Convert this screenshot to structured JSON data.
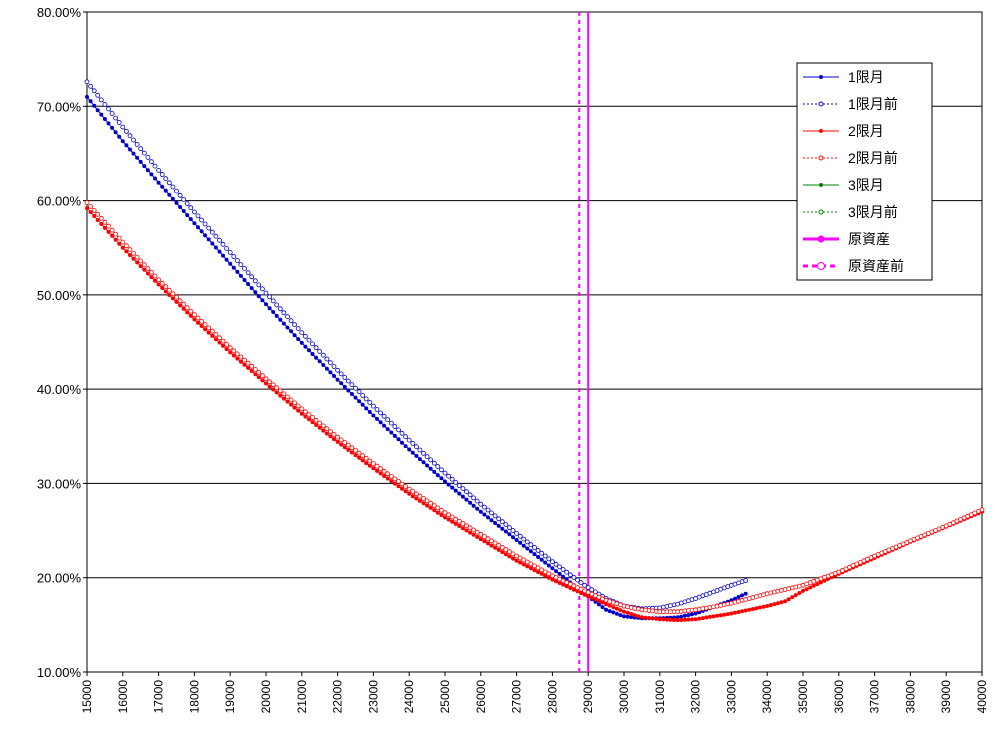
{
  "chart_data": {
    "type": "line",
    "title": "",
    "xlabel": "",
    "ylabel": "",
    "xlim": [
      15000,
      40000
    ],
    "ylim": [
      10,
      80
    ],
    "y_ticks": [
      "10.00%",
      "20.00%",
      "30.00%",
      "40.00%",
      "50.00%",
      "60.00%",
      "70.00%",
      "80.00%"
    ],
    "x_ticks": [
      "15000",
      "16000",
      "17000",
      "18000",
      "19000",
      "20000",
      "21000",
      "22000",
      "23000",
      "24000",
      "25000",
      "26000",
      "27000",
      "28000",
      "29000",
      "30000",
      "31000",
      "32000",
      "33000",
      "34000",
      "35000",
      "36000",
      "37000",
      "38000",
      "39000",
      "40000"
    ],
    "grid": "horizontal",
    "legend_position": "top-right",
    "series": [
      {
        "name": "1限月",
        "color": "#0000cc",
        "style": "solid-filled",
        "points": [
          [
            15000,
            71.0
          ],
          [
            16000,
            66.3
          ],
          [
            17000,
            61.9
          ],
          [
            18000,
            57.6
          ],
          [
            19000,
            53.3
          ],
          [
            20000,
            49.0
          ],
          [
            21000,
            44.9
          ],
          [
            22000,
            41.0
          ],
          [
            23000,
            37.2
          ],
          [
            24000,
            33.6
          ],
          [
            25000,
            30.2
          ],
          [
            26000,
            27.0
          ],
          [
            27000,
            24.0
          ],
          [
            28000,
            21.0
          ],
          [
            28900,
            18.3
          ],
          [
            29500,
            16.6
          ],
          [
            30000,
            15.9
          ],
          [
            30500,
            15.7
          ],
          [
            31000,
            15.7
          ],
          [
            31500,
            15.8
          ],
          [
            32000,
            16.2
          ],
          [
            32500,
            16.9
          ],
          [
            33000,
            17.6
          ],
          [
            33400,
            18.3
          ]
        ]
      },
      {
        "name": "1限月前",
        "color": "#0000cc",
        "style": "dotted-open",
        "points": [
          [
            15000,
            72.6
          ],
          [
            16000,
            67.8
          ],
          [
            17000,
            63.2
          ],
          [
            18000,
            58.8
          ],
          [
            19000,
            54.5
          ],
          [
            20000,
            50.2
          ],
          [
            21000,
            46.0
          ],
          [
            22000,
            42.0
          ],
          [
            23000,
            38.2
          ],
          [
            24000,
            34.6
          ],
          [
            25000,
            31.1
          ],
          [
            26000,
            27.8
          ],
          [
            27000,
            24.7
          ],
          [
            28000,
            21.7
          ],
          [
            28900,
            19.2
          ],
          [
            29500,
            17.8
          ],
          [
            30000,
            17.0
          ],
          [
            30500,
            16.7
          ],
          [
            31000,
            16.8
          ],
          [
            31500,
            17.2
          ],
          [
            32000,
            17.8
          ],
          [
            32500,
            18.5
          ],
          [
            33000,
            19.2
          ],
          [
            33400,
            19.7
          ]
        ]
      },
      {
        "name": "2限月",
        "color": "#ff0000",
        "style": "solid-filled",
        "points": [
          [
            15000,
            59.2
          ],
          [
            16000,
            55.0
          ],
          [
            17000,
            51.1
          ],
          [
            18000,
            47.4
          ],
          [
            19000,
            43.9
          ],
          [
            20000,
            40.6
          ],
          [
            21000,
            37.4
          ],
          [
            22000,
            34.4
          ],
          [
            23000,
            31.6
          ],
          [
            24000,
            28.9
          ],
          [
            25000,
            26.4
          ],
          [
            26000,
            24.1
          ],
          [
            27000,
            21.8
          ],
          [
            28000,
            19.8
          ],
          [
            28900,
            18.2
          ],
          [
            29500,
            17.2
          ],
          [
            30000,
            16.4
          ],
          [
            30500,
            15.8
          ],
          [
            31000,
            15.6
          ],
          [
            31500,
            15.5
          ],
          [
            32000,
            15.6
          ],
          [
            32500,
            15.9
          ],
          [
            33000,
            16.2
          ],
          [
            33500,
            16.6
          ],
          [
            34000,
            17.0
          ],
          [
            34500,
            17.5
          ],
          [
            35000,
            18.6
          ],
          [
            36000,
            20.4
          ],
          [
            37000,
            22.1
          ],
          [
            38000,
            23.8
          ],
          [
            39000,
            25.4
          ],
          [
            40000,
            27.0
          ]
        ]
      },
      {
        "name": "2限月前",
        "color": "#ff0000",
        "style": "dotted-open",
        "points": [
          [
            15000,
            59.8
          ],
          [
            16000,
            55.6
          ],
          [
            17000,
            51.6
          ],
          [
            18000,
            47.9
          ],
          [
            19000,
            44.4
          ],
          [
            20000,
            41.1
          ],
          [
            21000,
            37.9
          ],
          [
            22000,
            34.9
          ],
          [
            23000,
            32.1
          ],
          [
            24000,
            29.4
          ],
          [
            25000,
            26.9
          ],
          [
            26000,
            24.6
          ],
          [
            27000,
            22.3
          ],
          [
            28000,
            20.2
          ],
          [
            28900,
            18.6
          ],
          [
            29500,
            17.6
          ],
          [
            30000,
            17.0
          ],
          [
            30500,
            16.6
          ],
          [
            31000,
            16.4
          ],
          [
            31500,
            16.4
          ],
          [
            32000,
            16.6
          ],
          [
            32500,
            16.9
          ],
          [
            33000,
            17.3
          ],
          [
            33500,
            17.8
          ],
          [
            34000,
            18.3
          ],
          [
            35000,
            19.2
          ],
          [
            36000,
            20.6
          ],
          [
            37000,
            22.3
          ],
          [
            38000,
            23.9
          ],
          [
            39000,
            25.5
          ],
          [
            40000,
            27.2
          ]
        ]
      },
      {
        "name": "3限月",
        "color": "#008000",
        "style": "solid-filled",
        "points": []
      },
      {
        "name": "3限月前",
        "color": "#008000",
        "style": "dotted-open",
        "points": []
      },
      {
        "name": "原資産",
        "color": "#ff00ff",
        "style": "vline-solid",
        "x": 29000
      },
      {
        "name": "原資産前",
        "color": "#ff00ff",
        "style": "vline-dashed",
        "x": 28750
      }
    ]
  }
}
